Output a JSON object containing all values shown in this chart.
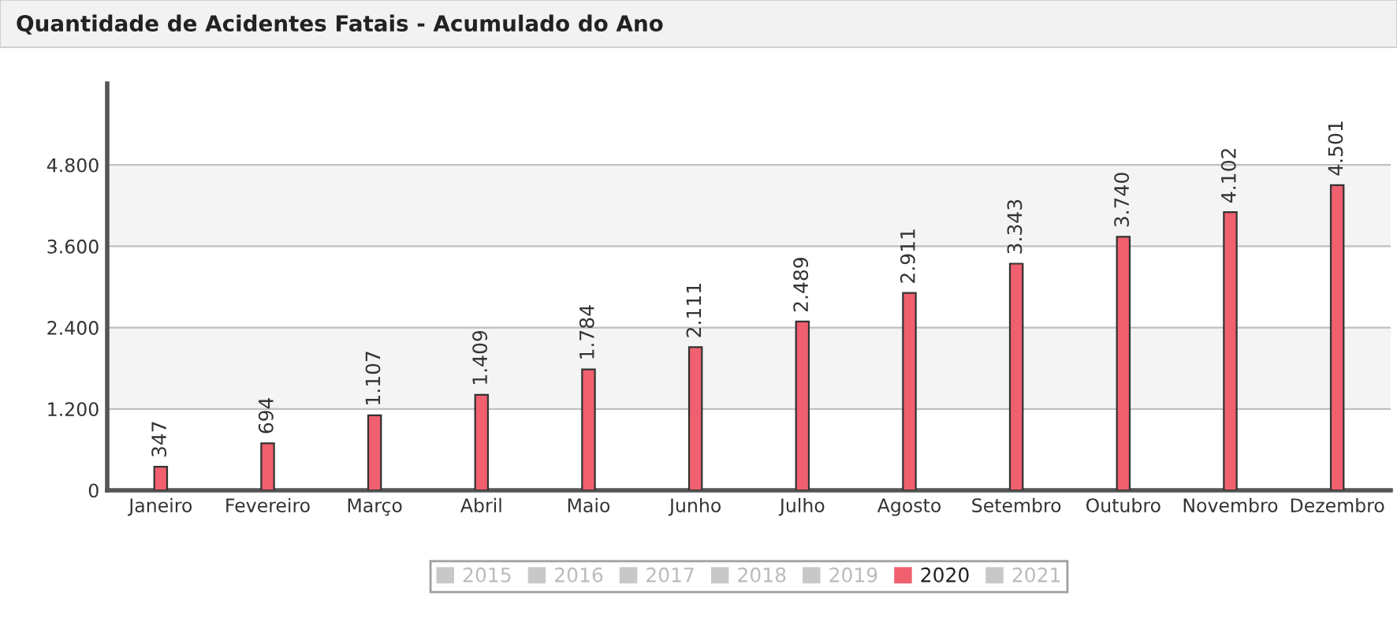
{
  "chart_data": {
    "type": "bar",
    "title": "Quantidade de Acidentes Fatais - Acumulado do Ano",
    "categories": [
      "Janeiro",
      "Fevereiro",
      "Março",
      "Abril",
      "Maio",
      "Junho",
      "Julho",
      "Agosto",
      "Setembro",
      "Outubro",
      "Novembro",
      "Dezembro"
    ],
    "series": [
      {
        "name": "2015",
        "color": "#c8c8c8",
        "values": [
          null,
          null,
          null,
          null,
          null,
          null,
          null,
          null,
          null,
          null,
          null,
          null
        ]
      },
      {
        "name": "2016",
        "color": "#c8c8c8",
        "values": [
          null,
          null,
          null,
          null,
          null,
          null,
          null,
          null,
          null,
          null,
          null,
          null
        ]
      },
      {
        "name": "2017",
        "color": "#c8c8c8",
        "values": [
          null,
          null,
          null,
          null,
          null,
          null,
          null,
          null,
          null,
          null,
          null,
          null
        ]
      },
      {
        "name": "2018",
        "color": "#c8c8c8",
        "values": [
          null,
          null,
          null,
          null,
          null,
          null,
          null,
          null,
          null,
          null,
          null,
          null
        ]
      },
      {
        "name": "2019",
        "color": "#c8c8c8",
        "values": [
          null,
          null,
          null,
          null,
          null,
          null,
          null,
          null,
          null,
          null,
          null,
          null
        ]
      },
      {
        "name": "2020",
        "color": "#f0606e",
        "values": [
          347,
          694,
          1107,
          1409,
          1784,
          2111,
          2489,
          2911,
          3343,
          3740,
          4102,
          4501
        ],
        "value_labels": [
          "347",
          "694",
          "1.107",
          "1.409",
          "1.784",
          "2.111",
          "2.489",
          "2.911",
          "3.343",
          "3.740",
          "4.102",
          "4.501"
        ]
      },
      {
        "name": "2021",
        "color": "#c8c8c8",
        "values": [
          null,
          null,
          null,
          null,
          null,
          null,
          null,
          null,
          null,
          null,
          null,
          null
        ]
      }
    ],
    "ylim": [
      0,
      6000
    ],
    "yticks": [
      0,
      {
        "value": 1200,
        "label": "1.200"
      },
      {
        "value": 2400,
        "label": "2.400"
      },
      {
        "value": 3600,
        "label": "3.600"
      },
      {
        "value": 4800,
        "label": "4.800"
      }
    ],
    "bands": [
      {
        "axis": "y",
        "from": 1200,
        "to": 2400,
        "color": "#f4f4f4"
      },
      {
        "axis": "y",
        "from": 3600,
        "to": 4800,
        "color": "#f4f4f4"
      }
    ],
    "grid": "y",
    "legend": "bottom"
  }
}
